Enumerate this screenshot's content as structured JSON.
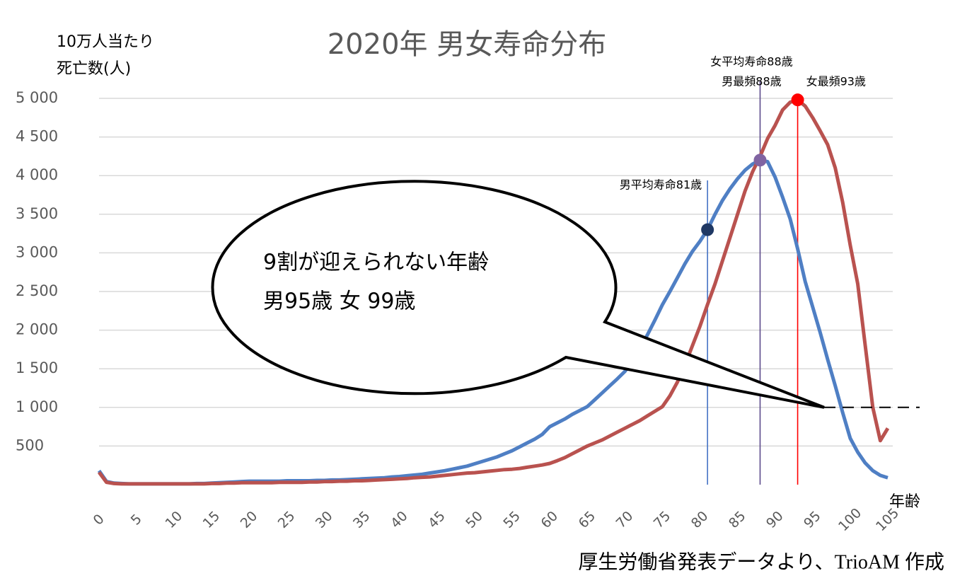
{
  "chart_data": {
    "type": "line",
    "title": "2020年 男女寿命分布",
    "y_label": [
      "10万人当たり",
      "死亡数(人)"
    ],
    "x_label": "年齢",
    "source": "厚生労働省発表データより、TrioAM 作成",
    "x": [
      0,
      1,
      2,
      3,
      4,
      5,
      6,
      7,
      8,
      9,
      10,
      11,
      12,
      13,
      14,
      15,
      16,
      17,
      18,
      19,
      20,
      21,
      22,
      23,
      24,
      25,
      26,
      27,
      28,
      29,
      30,
      31,
      32,
      33,
      34,
      35,
      36,
      37,
      38,
      39,
      40,
      41,
      42,
      43,
      44,
      45,
      46,
      47,
      48,
      49,
      50,
      51,
      52,
      53,
      54,
      55,
      56,
      57,
      58,
      59,
      60,
      61,
      62,
      63,
      64,
      65,
      66,
      67,
      68,
      69,
      70,
      71,
      72,
      73,
      74,
      75,
      76,
      77,
      78,
      79,
      80,
      81,
      82,
      83,
      84,
      85,
      86,
      87,
      88,
      89,
      90,
      91,
      92,
      93,
      94,
      95,
      96,
      97,
      98,
      99,
      100,
      101,
      102,
      103,
      104,
      105
    ],
    "xlim": [
      0,
      105
    ],
    "xticks": [
      0,
      5,
      10,
      15,
      20,
      25,
      30,
      35,
      40,
      45,
      50,
      55,
      60,
      65,
      70,
      75,
      80,
      85,
      90,
      95,
      100,
      105
    ],
    "ylim": [
      0,
      5000
    ],
    "yticks": [
      500,
      {
        "value": 1000,
        "label": "1 000"
      },
      {
        "value": 1500,
        "label": "1 500"
      },
      {
        "value": 2000,
        "label": "2 000"
      },
      {
        "value": 2500,
        "label": "2 500"
      },
      {
        "value": 3000,
        "label": "3 000"
      },
      {
        "value": 3500,
        "label": "3 500"
      },
      {
        "value": 4000,
        "label": "4 000"
      },
      {
        "value": 4500,
        "label": "4 500"
      },
      {
        "value": 5000,
        "label": "5 000"
      }
    ],
    "grid": true,
    "series": [
      {
        "color": "#4f7fc4",
        "values": [
          180,
          40,
          20,
          15,
          10,
          10,
          10,
          10,
          10,
          10,
          10,
          10,
          10,
          15,
          15,
          20,
          25,
          30,
          35,
          40,
          45,
          45,
          45,
          45,
          45,
          50,
          50,
          50,
          50,
          55,
          55,
          60,
          60,
          65,
          70,
          75,
          80,
          85,
          90,
          100,
          105,
          115,
          125,
          135,
          150,
          165,
          180,
          200,
          220,
          240,
          270,
          300,
          330,
          360,
          400,
          440,
          490,
          540,
          590,
          650,
          750,
          800,
          850,
          910,
          960,
          1010,
          1100,
          1190,
          1280,
          1370,
          1465,
          1600,
          1760,
          1940,
          2130,
          2330,
          2500,
          2680,
          2860,
          3020,
          3150,
          3300,
          3500,
          3680,
          3830,
          3960,
          4070,
          4150,
          4200,
          4180,
          3980,
          3720,
          3440,
          3050,
          2630,
          2300,
          1970,
          1620,
          1280,
          930,
          600,
          420,
          280,
          180,
          120,
          90
        ]
      },
      {
        "color": "#b9524f",
        "values": [
          160,
          30,
          15,
          10,
          10,
          10,
          10,
          10,
          10,
          10,
          10,
          10,
          10,
          10,
          10,
          15,
          15,
          20,
          20,
          25,
          25,
          25,
          25,
          25,
          30,
          30,
          30,
          30,
          35,
          35,
          40,
          40,
          45,
          45,
          50,
          50,
          55,
          60,
          65,
          70,
          75,
          80,
          90,
          95,
          100,
          110,
          120,
          130,
          140,
          150,
          155,
          165,
          175,
          185,
          195,
          200,
          210,
          225,
          240,
          255,
          275,
          310,
          350,
          400,
          450,
          500,
          540,
          580,
          630,
          680,
          730,
          780,
          830,
          890,
          950,
          1010,
          1150,
          1330,
          1550,
          1800,
          2050,
          2330,
          2600,
          2900,
          3200,
          3500,
          3800,
          4050,
          4250,
          4480,
          4650,
          4850,
          4950,
          4980,
          4900,
          4750,
          4580,
          4400,
          4100,
          3650,
          3100,
          2600,
          1800,
          1000,
          570,
          730
        ]
      }
    ],
    "markers": [
      {
        "x": 81,
        "y": 3300,
        "color": "#4472c4",
        "point_color": "#1f3864",
        "labels": [
          "男平均寿命81歳"
        ]
      },
      {
        "x": 88,
        "y": 4200,
        "color": "#5b4a8b",
        "point_color": "#8064a2",
        "labels": [
          "女平均寿命88歳",
          "男最頻88歳"
        ]
      },
      {
        "x": 93,
        "y": 4980,
        "color": "#ff0000",
        "point_color": "#ff0000",
        "labels": [
          "女最頻93歳"
        ]
      }
    ],
    "reference_value": 1000,
    "callout": [
      "9割が迎えられない年齢",
      "男95歳 女 99歳"
    ]
  }
}
